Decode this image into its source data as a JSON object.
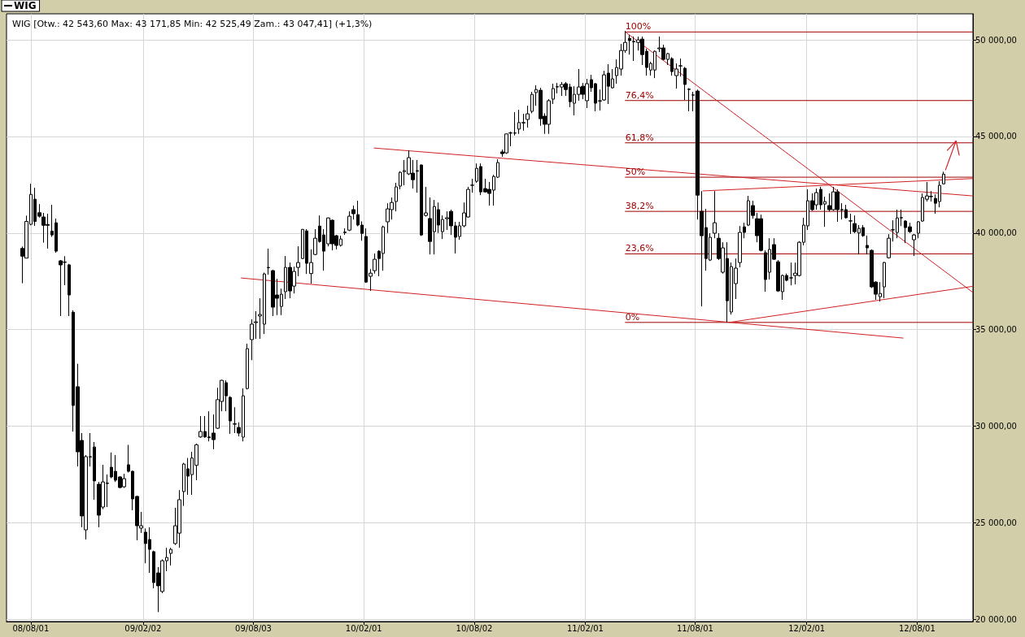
{
  "chart_data": {
    "type": "candlestick",
    "title": "WIG [Otw.: 42 543,60 Max: 43 171,85 Min: 42 525,49 Zam.: 43 047,41] (+1,3%)",
    "legend": "top left",
    "grid": true,
    "xlim": [
      "2008-06-22",
      "2012-11-01"
    ],
    "xticks": [
      {
        "value": "2008-08-01",
        "label": "08/08/01"
      },
      {
        "value": "2009-02-02",
        "label": "09/02/02"
      },
      {
        "value": "2009-08-03",
        "label": "09/08/03"
      },
      {
        "value": "2010-02-01",
        "label": "10/02/01"
      },
      {
        "value": "2010-08-02",
        "label": "10/08/02"
      },
      {
        "value": "2011-02-01",
        "label": "11/02/01"
      },
      {
        "value": "2011-08-01",
        "label": "11/08/01"
      },
      {
        "value": "2012-02-01",
        "label": "12/02/01"
      },
      {
        "value": "2012-08-01",
        "label": "12/08/01"
      }
    ],
    "ylim": [
      19880,
      51350
    ],
    "yticks": [
      {
        "value": 20000,
        "label": "20 000,00"
      },
      {
        "value": 25000,
        "label": "25 000,00"
      },
      {
        "value": 30000,
        "label": "30 000,00"
      },
      {
        "value": 35000,
        "label": "35 000,00"
      },
      {
        "value": 40000,
        "label": "40 000,00"
      },
      {
        "value": 45000,
        "label": "45 000,00"
      },
      {
        "value": 50000,
        "label": "50 000,00"
      }
    ],
    "series": [
      {
        "name": "WIG",
        "color": "#000000",
        "x": [
          "2008-07-18",
          "2008-07-25",
          "2008-08-01",
          "2008-08-08",
          "2008-08-15",
          "2008-08-22",
          "2008-08-29",
          "2008-09-05",
          "2008-09-12",
          "2008-09-19",
          "2008-09-26",
          "2008-10-03",
          "2008-10-10",
          "2008-10-17",
          "2008-10-24",
          "2008-10-31",
          "2008-11-07",
          "2008-11-14",
          "2008-11-21",
          "2008-11-28",
          "2008-12-05",
          "2008-12-12",
          "2008-12-19",
          "2008-12-26",
          "2009-01-02",
          "2009-01-09",
          "2009-01-16",
          "2009-01-23",
          "2009-01-30",
          "2009-02-06",
          "2009-02-13",
          "2009-02-20",
          "2009-02-27",
          "2009-03-06",
          "2009-03-13",
          "2009-03-20",
          "2009-03-27",
          "2009-04-03",
          "2009-04-10",
          "2009-04-17",
          "2009-04-24",
          "2009-05-01",
          "2009-05-08",
          "2009-05-15",
          "2009-05-22",
          "2009-05-29",
          "2009-06-05",
          "2009-06-12",
          "2009-06-19",
          "2009-06-26",
          "2009-07-03",
          "2009-07-10",
          "2009-07-17",
          "2009-07-24",
          "2009-07-31",
          "2009-08-07",
          "2009-08-14",
          "2009-08-21",
          "2009-08-28",
          "2009-09-04",
          "2009-09-11",
          "2009-09-18",
          "2009-09-25",
          "2009-10-02",
          "2009-10-09",
          "2009-10-16",
          "2009-10-23",
          "2009-10-30",
          "2009-11-06",
          "2009-11-13",
          "2009-11-20",
          "2009-11-27",
          "2009-12-04",
          "2009-12-11",
          "2009-12-18",
          "2009-12-25",
          "2010-01-01",
          "2010-01-08",
          "2010-01-15",
          "2010-01-22",
          "2010-01-29",
          "2010-02-05",
          "2010-02-12",
          "2010-02-19",
          "2010-02-26",
          "2010-03-05",
          "2010-03-12",
          "2010-03-19",
          "2010-03-26",
          "2010-04-02",
          "2010-04-09",
          "2010-04-16",
          "2010-04-23",
          "2010-04-30",
          "2010-05-07",
          "2010-05-14",
          "2010-05-21",
          "2010-05-28",
          "2010-06-04",
          "2010-06-11",
          "2010-06-18",
          "2010-06-25",
          "2010-07-02",
          "2010-07-09",
          "2010-07-16",
          "2010-07-23",
          "2010-07-30",
          "2010-08-06",
          "2010-08-13",
          "2010-08-20",
          "2010-08-27",
          "2010-09-03",
          "2010-09-10",
          "2010-09-17",
          "2010-09-24",
          "2010-10-01",
          "2010-10-08",
          "2010-10-15",
          "2010-10-22",
          "2010-10-29",
          "2010-11-05",
          "2010-11-12",
          "2010-11-19",
          "2010-11-26",
          "2010-12-03",
          "2010-12-10",
          "2010-12-17",
          "2010-12-24",
          "2010-12-31",
          "2011-01-07",
          "2011-01-14",
          "2011-01-21",
          "2011-01-28",
          "2011-02-04",
          "2011-02-11",
          "2011-02-18",
          "2011-02-25",
          "2011-03-04",
          "2011-03-11",
          "2011-03-18",
          "2011-03-25",
          "2011-04-01",
          "2011-04-08",
          "2011-04-15",
          "2011-04-22",
          "2011-04-29",
          "2011-05-06",
          "2011-05-13",
          "2011-05-20",
          "2011-05-27",
          "2011-06-03",
          "2011-06-10",
          "2011-06-17",
          "2011-06-24",
          "2011-07-01",
          "2011-07-08",
          "2011-07-15",
          "2011-07-22",
          "2011-07-29",
          "2011-08-05",
          "2011-08-12",
          "2011-08-19",
          "2011-08-26",
          "2011-09-02",
          "2011-09-09",
          "2011-09-16",
          "2011-09-23",
          "2011-09-30",
          "2011-10-07",
          "2011-10-14",
          "2011-10-21",
          "2011-10-28",
          "2011-11-04",
          "2011-11-11",
          "2011-11-18",
          "2011-11-25",
          "2011-12-02",
          "2011-12-09",
          "2011-12-16",
          "2011-12-23",
          "2011-12-30",
          "2012-01-06",
          "2012-01-13",
          "2012-01-20",
          "2012-01-27",
          "2012-02-03",
          "2012-02-10",
          "2012-02-17",
          "2012-02-24",
          "2012-03-02",
          "2012-03-09",
          "2012-03-16",
          "2012-03-23",
          "2012-03-30",
          "2012-04-06",
          "2012-04-13",
          "2012-04-20",
          "2012-04-27",
          "2012-05-04",
          "2012-05-11",
          "2012-05-18",
          "2012-05-25",
          "2012-06-01",
          "2012-06-08",
          "2012-06-15",
          "2012-06-22",
          "2012-06-29",
          "2012-07-06",
          "2012-07-13",
          "2012-07-20",
          "2012-07-27",
          "2012-08-03",
          "2012-08-10",
          "2012-08-17",
          "2012-08-24",
          "2012-08-31",
          "2012-09-07",
          "2012-09-14"
        ],
        "ohlc": [
          [
            39200,
            39300,
            37400,
            38800
          ],
          [
            38700,
            40900,
            38700,
            40600
          ],
          [
            40450,
            42550,
            40400,
            42000
          ],
          [
            41750,
            42340,
            40370,
            40600
          ],
          [
            41050,
            41500,
            40800,
            40870
          ],
          [
            40830,
            41040,
            39500,
            40400
          ],
          [
            40440,
            41000,
            39190,
            40400
          ],
          [
            40100,
            41460,
            39800,
            39900
          ],
          [
            40530,
            40750,
            38980,
            39060
          ],
          [
            38560,
            38600,
            35700,
            38350
          ],
          [
            38480,
            38800,
            37300,
            38500
          ],
          [
            38350,
            38400,
            35700,
            36790
          ],
          [
            35900,
            36000,
            29720,
            31070
          ],
          [
            32040,
            33230,
            27910,
            28670
          ],
          [
            29260,
            29640,
            24760,
            25350
          ],
          [
            24630,
            28500,
            24130,
            28420
          ],
          [
            28420,
            29640,
            27910,
            28400
          ],
          [
            28920,
            29180,
            26190,
            27160
          ],
          [
            26990,
            27110,
            24760,
            25390
          ],
          [
            25810,
            28000,
            25700,
            27110
          ],
          [
            27050,
            27500,
            25810,
            27030
          ],
          [
            27870,
            28630,
            27300,
            27370
          ],
          [
            27660,
            28500,
            27110,
            27200
          ],
          [
            27370,
            27400,
            26780,
            26820
          ],
          [
            26860,
            27530,
            26800,
            27280
          ],
          [
            28000,
            29030,
            27600,
            27660
          ],
          [
            27660,
            27700,
            25640,
            26230
          ],
          [
            26360,
            26400,
            24090,
            24840
          ],
          [
            24720,
            25560,
            24470,
            24840
          ],
          [
            24510,
            24700,
            22900,
            23920
          ],
          [
            24130,
            24760,
            22400,
            23620
          ],
          [
            23500,
            23550,
            21600,
            21900
          ],
          [
            22400,
            22700,
            20370,
            21730
          ],
          [
            21440,
            23100,
            21350,
            23030
          ],
          [
            23030,
            23700,
            22490,
            23200
          ],
          [
            23410,
            23700,
            22780,
            23620
          ],
          [
            23920,
            25770,
            23850,
            24840
          ],
          [
            24460,
            26690,
            23700,
            26190
          ],
          [
            26610,
            28100,
            25870,
            28040
          ],
          [
            27790,
            28350,
            26440,
            27410
          ],
          [
            27490,
            28670,
            26440,
            28350
          ],
          [
            27970,
            29100,
            27200,
            29030
          ],
          [
            29440,
            30520,
            29400,
            29720
          ],
          [
            29720,
            30520,
            29400,
            29440
          ],
          [
            29440,
            30770,
            29210,
            29400
          ],
          [
            29640,
            30600,
            28800,
            29300
          ],
          [
            29890,
            31990,
            29850,
            31370
          ],
          [
            31280,
            32400,
            30770,
            32370
          ],
          [
            32250,
            32370,
            30770,
            31570
          ],
          [
            31490,
            31550,
            29600,
            30270
          ],
          [
            30100,
            30980,
            29640,
            30120
          ],
          [
            29930,
            30200,
            29470,
            29640
          ],
          [
            29430,
            31950,
            29210,
            31570
          ],
          [
            31950,
            34270,
            31900,
            34010
          ],
          [
            34480,
            35530,
            33420,
            35280
          ],
          [
            35360,
            35950,
            34520,
            35400
          ],
          [
            35700,
            36620,
            34520,
            35780
          ],
          [
            35280,
            37950,
            34770,
            37880
          ],
          [
            38200,
            39190,
            37840,
            38220
          ],
          [
            38050,
            38100,
            35700,
            36160
          ],
          [
            36790,
            37630,
            35750,
            36620
          ],
          [
            36200,
            37120,
            35750,
            36830
          ],
          [
            36960,
            38810,
            36580,
            38220
          ],
          [
            38220,
            38470,
            36620,
            37000
          ],
          [
            37250,
            38260,
            36870,
            38010
          ],
          [
            38220,
            39310,
            37760,
            38470
          ],
          [
            38680,
            40200,
            38650,
            40190
          ],
          [
            40110,
            40200,
            37880,
            38430
          ],
          [
            37900,
            39150,
            37380,
            38470
          ],
          [
            38890,
            40200,
            38850,
            39730
          ],
          [
            40360,
            40910,
            39500,
            39560
          ],
          [
            39900,
            40200,
            38050,
            39060
          ],
          [
            39440,
            40800,
            39310,
            40780
          ],
          [
            40660,
            40700,
            39100,
            39440
          ],
          [
            39860,
            39900,
            39150,
            39360
          ],
          [
            39360,
            39860,
            39300,
            39690
          ],
          [
            40020,
            40240,
            39900,
            40050
          ],
          [
            40150,
            41120,
            40100,
            40870
          ],
          [
            41210,
            41420,
            40700,
            41000
          ],
          [
            40950,
            41670,
            40350,
            40410
          ],
          [
            40410,
            40600,
            39600,
            39980
          ],
          [
            39820,
            40240,
            37420,
            37460
          ],
          [
            37760,
            38130,
            37000,
            37920
          ],
          [
            38050,
            38940,
            37900,
            38640
          ],
          [
            39060,
            39100,
            37760,
            38680
          ],
          [
            38940,
            40380,
            38050,
            40320
          ],
          [
            40580,
            41540,
            40000,
            41250
          ],
          [
            41210,
            41840,
            40700,
            41580
          ],
          [
            41630,
            42600,
            41120,
            42390
          ],
          [
            42430,
            43200,
            42260,
            43140
          ],
          [
            43180,
            43780,
            42470,
            43230
          ],
          [
            43060,
            44280,
            43000,
            43900
          ],
          [
            43100,
            43780,
            42300,
            42760
          ],
          [
            43230,
            43780,
            42090,
            43200
          ],
          [
            43520,
            43550,
            39850,
            39900
          ],
          [
            40910,
            42390,
            40850,
            41040
          ],
          [
            40750,
            41840,
            38890,
            39560
          ],
          [
            40070,
            41710,
            38890,
            41370
          ],
          [
            41210,
            41580,
            40000,
            40410
          ],
          [
            40070,
            40910,
            39690,
            40700
          ],
          [
            40740,
            41120,
            40160,
            40790
          ],
          [
            41120,
            41210,
            39900,
            40370
          ],
          [
            40370,
            40580,
            38940,
            39780
          ],
          [
            39820,
            40580,
            39650,
            40370
          ],
          [
            40370,
            41580,
            40300,
            41040
          ],
          [
            40830,
            42390,
            40800,
            42260
          ],
          [
            42470,
            42810,
            42090,
            42480
          ],
          [
            42680,
            43600,
            42600,
            43350
          ],
          [
            43440,
            43600,
            41960,
            42130
          ],
          [
            42300,
            42810,
            42100,
            42130
          ],
          [
            42260,
            42640,
            41420,
            42050
          ],
          [
            42220,
            43010,
            41420,
            42930
          ],
          [
            42890,
            43820,
            42850,
            43650
          ],
          [
            44200,
            44320,
            43950,
            44110
          ],
          [
            44150,
            45150,
            44100,
            45130
          ],
          [
            45170,
            45250,
            44490,
            45190
          ],
          [
            45170,
            46260,
            45050,
            45180
          ],
          [
            45380,
            46380,
            45130,
            45720
          ],
          [
            45700,
            46170,
            45300,
            45720
          ],
          [
            45880,
            46590,
            45460,
            46170
          ],
          [
            46300,
            47310,
            46200,
            47180
          ],
          [
            47270,
            47650,
            46590,
            47430
          ],
          [
            47390,
            47520,
            45550,
            45920
          ],
          [
            46050,
            46200,
            45130,
            45630
          ],
          [
            45630,
            46930,
            45130,
            46850
          ],
          [
            46930,
            47730,
            46680,
            47480
          ],
          [
            47560,
            47770,
            47230,
            47580
          ],
          [
            47560,
            47820,
            47100,
            47690
          ],
          [
            47730,
            47820,
            47100,
            47430
          ],
          [
            47560,
            47730,
            46510,
            46800
          ],
          [
            46720,
            47600,
            46090,
            47180
          ],
          [
            47180,
            48490,
            46850,
            47560
          ],
          [
            47600,
            47770,
            46930,
            47180
          ],
          [
            46850,
            47980,
            46470,
            47730
          ],
          [
            47940,
            48190,
            47310,
            47520
          ],
          [
            47730,
            47770,
            46300,
            46720
          ],
          [
            46830,
            47430,
            46340,
            46850
          ],
          [
            46890,
            48400,
            46850,
            48190
          ],
          [
            48280,
            48740,
            46680,
            47600
          ],
          [
            47520,
            48490,
            47480,
            47980
          ],
          [
            48150,
            48990,
            47730,
            48570
          ],
          [
            48490,
            49790,
            48150,
            49450
          ],
          [
            49450,
            50460,
            49330,
            49870
          ],
          [
            50080,
            50250,
            49240,
            49960
          ],
          [
            49920,
            50170,
            48910,
            49900
          ],
          [
            49870,
            50170,
            49450,
            50000
          ],
          [
            50040,
            50170,
            48700,
            49240
          ],
          [
            49410,
            49540,
            48150,
            48570
          ],
          [
            48440,
            48870,
            48150,
            48780
          ],
          [
            48440,
            49450,
            48020,
            49410
          ],
          [
            49540,
            50170,
            49370,
            49580
          ],
          [
            49580,
            49750,
            48950,
            48990
          ],
          [
            48990,
            49320,
            48700,
            49290
          ],
          [
            49030,
            49100,
            48150,
            48360
          ],
          [
            48150,
            48780,
            47480,
            48490
          ],
          [
            48650,
            49030,
            48100,
            48660
          ],
          [
            48530,
            48600,
            46890,
            47690
          ],
          [
            47430,
            47500,
            46300,
            47450
          ],
          [
            47140,
            47310,
            46300,
            47150
          ],
          [
            47350,
            47430,
            40700,
            41960
          ],
          [
            41120,
            42170,
            36200,
            39860
          ],
          [
            40280,
            41250,
            38050,
            38680
          ],
          [
            38600,
            39990,
            38550,
            39780
          ],
          [
            39990,
            42170,
            39730,
            40530
          ],
          [
            39730,
            39990,
            38600,
            38680
          ],
          [
            37970,
            39520,
            37900,
            39230
          ],
          [
            38680,
            39520,
            35360,
            36490
          ],
          [
            35910,
            38470,
            35780,
            38260
          ],
          [
            37380,
            38680,
            36580,
            38180
          ],
          [
            38470,
            40360,
            38220,
            40030
          ],
          [
            40320,
            40530,
            39730,
            40030
          ],
          [
            40410,
            41920,
            40360,
            41670
          ],
          [
            41420,
            41670,
            40740,
            40910
          ],
          [
            40740,
            41040,
            39520,
            39860
          ],
          [
            40740,
            40950,
            39050,
            39100
          ],
          [
            38980,
            39100,
            36960,
            37590
          ],
          [
            37970,
            39730,
            37590,
            39150
          ],
          [
            39400,
            39730,
            38600,
            38640
          ],
          [
            38510,
            38600,
            36950,
            37000
          ],
          [
            36960,
            37850,
            36540,
            37800
          ],
          [
            37800,
            37900,
            37500,
            37550
          ],
          [
            37670,
            38470,
            37290,
            37680
          ],
          [
            37800,
            38470,
            37340,
            37920
          ],
          [
            37800,
            39580,
            37750,
            39520
          ],
          [
            39520,
            40790,
            39360,
            40410
          ],
          [
            40370,
            42260,
            40160,
            41670
          ],
          [
            41670,
            42050,
            41150,
            41210
          ],
          [
            41460,
            42300,
            41210,
            42090
          ],
          [
            42260,
            42390,
            41210,
            41460
          ],
          [
            41500,
            41880,
            40320,
            41630
          ],
          [
            41420,
            42050,
            41120,
            41210
          ],
          [
            41210,
            42390,
            41150,
            42130
          ],
          [
            42130,
            42260,
            40580,
            41210
          ],
          [
            41210,
            41540,
            40700,
            41200
          ],
          [
            41210,
            41460,
            40750,
            40790
          ],
          [
            40620,
            41000,
            39950,
            40630
          ],
          [
            40490,
            40910,
            39990,
            40070
          ],
          [
            40000,
            40410,
            38890,
            40240
          ],
          [
            40280,
            40410,
            39800,
            39860
          ],
          [
            39360,
            39860,
            38890,
            39230
          ],
          [
            39100,
            39150,
            37150,
            37210
          ],
          [
            37460,
            37500,
            36540,
            36830
          ],
          [
            36700,
            37460,
            36450,
            36870
          ],
          [
            37210,
            38500,
            36620,
            38470
          ],
          [
            38720,
            39940,
            38680,
            39730
          ],
          [
            40160,
            40660,
            39560,
            40170
          ],
          [
            40030,
            41210,
            39730,
            40780
          ],
          [
            40780,
            41210,
            40360,
            40800
          ],
          [
            40620,
            40660,
            39480,
            40280
          ],
          [
            40320,
            40530,
            40000,
            40070
          ],
          [
            39650,
            39950,
            38810,
            39900
          ],
          [
            39990,
            40620,
            39730,
            40580
          ],
          [
            40620,
            42050,
            40580,
            41840
          ],
          [
            41750,
            42640,
            41630,
            41920
          ],
          [
            41880,
            42170,
            41630,
            41900
          ],
          [
            41790,
            42000,
            41000,
            41540
          ],
          [
            41630,
            42680,
            41330,
            42470
          ],
          [
            42543.6,
            43171.85,
            42525.49,
            43047.41
          ]
        ]
      },
      {
        "type": "line",
        "name": "100%",
        "color": "#a00000",
        "x": [
          "2011-04-08",
          "2012-11-01"
        ],
        "values": [
          50410,
          50410
        ]
      },
      {
        "type": "line",
        "name": "76,4%",
        "color": "#a00000",
        "x": [
          "2011-04-08",
          "2012-11-01"
        ],
        "values": [
          46860,
          46860
        ]
      },
      {
        "type": "line",
        "name": "61,8%",
        "color": "#a00000",
        "x": [
          "2011-04-08",
          "2012-11-01"
        ],
        "values": [
          44670,
          44670
        ]
      },
      {
        "type": "line",
        "name": "50%",
        "color": "#a00000",
        "x": [
          "2011-04-08",
          "2012-11-01"
        ],
        "values": [
          42890,
          42890
        ]
      },
      {
        "type": "line",
        "name": "38,2%",
        "color": "#a00000",
        "x": [
          "2011-04-08",
          "2012-11-01"
        ],
        "values": [
          41120,
          41120
        ]
      },
      {
        "type": "line",
        "name": "23,6%",
        "color": "#a00000",
        "x": [
          "2011-04-08",
          "2012-11-01"
        ],
        "values": [
          38920,
          38920
        ]
      },
      {
        "type": "line",
        "name": "0%",
        "color": "#a00000",
        "x": [
          "2011-04-08",
          "2012-11-01"
        ],
        "values": [
          35370,
          35370
        ]
      },
      {
        "type": "line",
        "color": "#d02020",
        "x": [
          "2010-02-18",
          "2012-11-01"
        ],
        "values": [
          44400,
          41920
        ]
      },
      {
        "type": "line",
        "color": "#d02020",
        "x": [
          "2009-07-14",
          "2012-07-09"
        ],
        "values": [
          37670,
          34560
        ]
      },
      {
        "type": "line",
        "color": "#d02020",
        "x": [
          "2011-04-08",
          "2012-11-01"
        ],
        "values": [
          50410,
          36920
        ]
      },
      {
        "type": "line",
        "color": "#d02020",
        "x": [
          "2011-09-26",
          "2012-11-01"
        ],
        "values": [
          35370,
          37240
        ]
      },
      {
        "type": "line",
        "color": "#d02020",
        "x": [
          "2011-08-14",
          "2012-11-01"
        ],
        "values": [
          42180,
          42820
        ]
      }
    ]
  }
}
